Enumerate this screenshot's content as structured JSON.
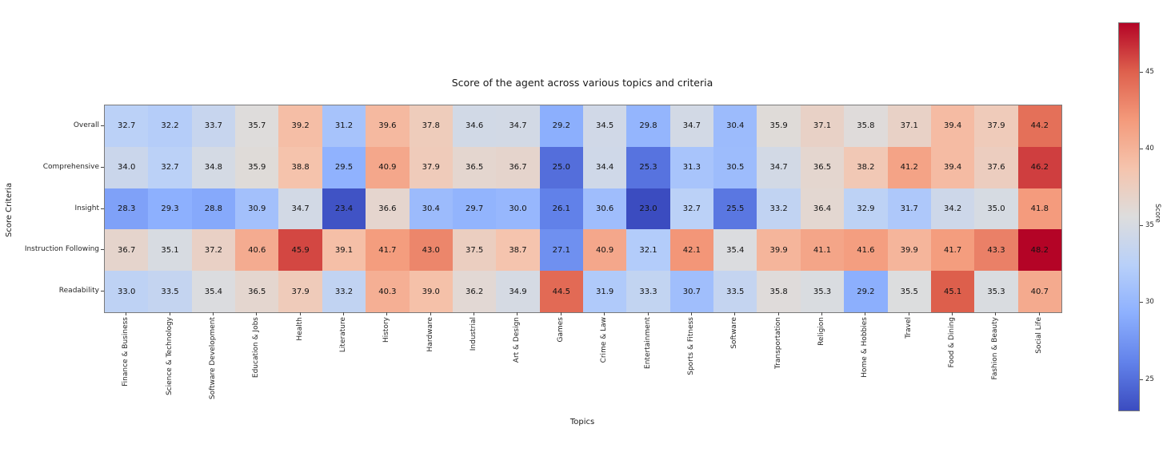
{
  "chart_data": {
    "type": "heatmap",
    "title": "Score of the agent across various topics and criteria",
    "xlabel": "Topics",
    "ylabel": "Score Criteria",
    "x_categories": [
      "Finance & Business",
      "Science & Technology",
      "Software Development",
      "Education & Jobs",
      "Health",
      "Literature",
      "History",
      "Hardware",
      "Industrial",
      "Art & Design",
      "Games",
      "Crime & Law",
      "Entertainment",
      "Sports & Fitness",
      "Software",
      "Transportation",
      "Religion",
      "Home & Hobbies",
      "Travel",
      "Food & Dining",
      "Fashion & Beauty",
      "Social Life"
    ],
    "y_categories": [
      "Overall",
      "Comprehensive",
      "Insight",
      "Instruction Following",
      "Readability"
    ],
    "series": [
      {
        "name": "Overall",
        "values": [
          32.7,
          32.2,
          33.7,
          35.7,
          39.2,
          31.2,
          39.6,
          37.8,
          34.6,
          34.7,
          29.2,
          34.5,
          29.8,
          34.7,
          30.4,
          35.9,
          37.1,
          35.8,
          37.1,
          39.4,
          37.9,
          44.2
        ]
      },
      {
        "name": "Comprehensive",
        "values": [
          34.0,
          32.7,
          34.8,
          35.9,
          38.8,
          29.5,
          40.9,
          37.9,
          36.5,
          36.7,
          25.0,
          34.4,
          25.3,
          31.3,
          30.5,
          34.7,
          36.5,
          38.2,
          41.2,
          39.4,
          37.6,
          46.2
        ]
      },
      {
        "name": "Insight",
        "values": [
          28.3,
          29.3,
          28.8,
          30.9,
          34.7,
          23.4,
          36.6,
          30.4,
          29.7,
          30.0,
          26.1,
          30.6,
          23.0,
          32.7,
          25.5,
          33.2,
          36.4,
          32.9,
          31.7,
          34.2,
          35.0,
          41.8
        ]
      },
      {
        "name": "Instruction Following",
        "values": [
          36.7,
          35.1,
          37.2,
          40.6,
          45.9,
          39.1,
          41.7,
          43.0,
          37.5,
          38.7,
          27.1,
          40.9,
          32.1,
          42.1,
          35.4,
          39.9,
          41.1,
          41.6,
          39.9,
          41.7,
          43.3,
          48.2
        ]
      },
      {
        "name": "Readability",
        "values": [
          33.0,
          33.5,
          35.4,
          36.5,
          37.9,
          33.2,
          40.3,
          39.0,
          36.2,
          34.9,
          44.5,
          31.9,
          33.3,
          30.7,
          33.5,
          35.8,
          35.3,
          29.2,
          35.5,
          45.1,
          35.3,
          40.7
        ]
      }
    ],
    "colorbar": {
      "label": "Score",
      "ticks": [
        45,
        40,
        35,
        30,
        25
      ],
      "vmin": 23.0,
      "vmax": 48.2
    },
    "colormap": {
      "name": "coolwarm",
      "anchors": [
        "#3B4CC0",
        "#6282EA",
        "#8DB0FE",
        "#B8D0F9",
        "#DDDDDD",
        "#F5C4AD",
        "#F49A7B",
        "#DE604D",
        "#B40426"
      ]
    },
    "annotation_color": "#111111",
    "grid": false,
    "legend": false
  }
}
